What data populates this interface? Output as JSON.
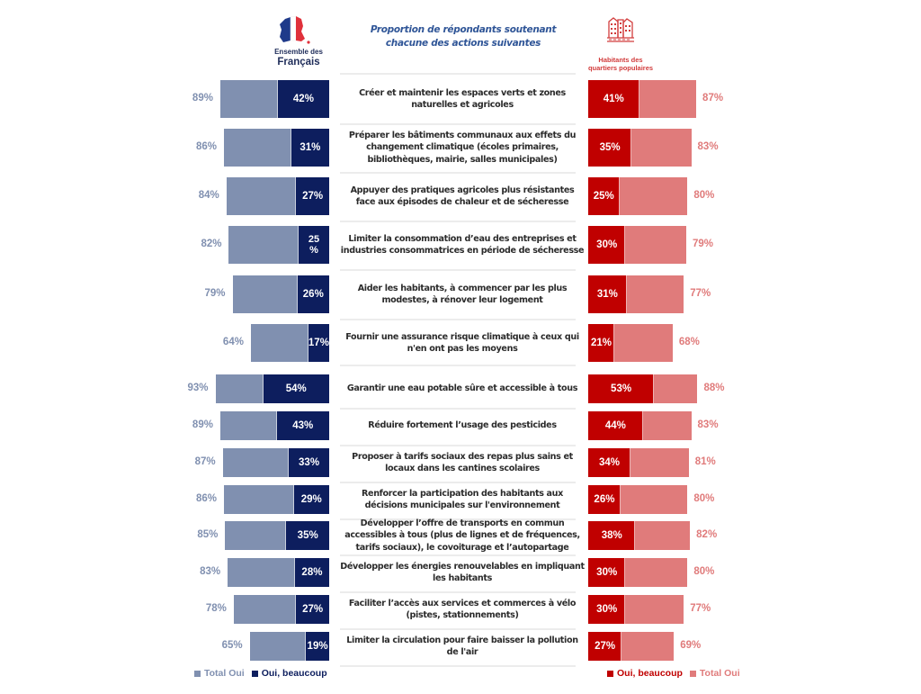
{
  "chart_data": {
    "type": "bar",
    "orientation": "horizontal",
    "title": "Proportion de répondants soutenant chacune des actions suivantes",
    "groups": [
      {
        "name": "Ensemble des Français",
        "label_line1": "Ensemble des",
        "label_line2": "Français",
        "icon": "france-flag-map-icon",
        "side": "left"
      },
      {
        "name": "Habitants des quartiers populaires",
        "label_line1": "Habitants des",
        "label_line2": "quartiers populaires",
        "icon": "buildings-icon",
        "side": "right"
      }
    ],
    "categories": [
      "Créer et maintenir les espaces verts et zones naturelles et agricoles",
      "Préparer les bâtiments communaux aux effets du changement climatique (écoles primaires, bibliothèques, mairie, salles municipales)",
      "Appuyer des pratiques agricoles plus résistantes face aux épisodes de chaleur et de sécheresse",
      "Limiter la consommation d’eau des entreprises et industries consommatrices en période de sécheresse",
      "Aider les habitants, à commencer par les plus modestes, à rénover leur logement",
      "Fournir une assurance risque climatique à ceux qui n'en ont pas les moyens",
      "Garantir une eau potable sûre et accessible à tous",
      "Réduire fortement l’usage des pesticides",
      "Proposer à tarifs sociaux des repas plus sains et locaux dans les cantines scolaires",
      "Renforcer la participation des habitants aux décisions municipales sur l'environnement",
      "Développer l’offre de transports en commun accessibles à tous (plus de lignes et de fréquences, tarifs sociaux), le covoiturage et l’autopartage",
      "Développer les énergies renouvelables en impliquant les habitants",
      "Faciliter l’accès aux services et commerces à vélo (pistes, stationnements)",
      "Limiter la circulation pour faire baisser la pollution de l'air"
    ],
    "series": [
      {
        "name": "Total Oui",
        "group": "Ensemble des Français",
        "color": "#8090b0",
        "values": [
          89,
          86,
          84,
          82,
          79,
          64,
          93,
          89,
          87,
          86,
          85,
          83,
          78,
          65
        ]
      },
      {
        "name": "Oui, beaucoup",
        "group": "Ensemble des Français",
        "color": "#0d1e5e",
        "values": [
          42,
          31,
          27,
          25,
          26,
          17,
          54,
          43,
          33,
          29,
          35,
          28,
          27,
          19
        ]
      },
      {
        "name": "Oui, beaucoup",
        "group": "Habitants des quartiers populaires",
        "color": "#c00000",
        "values": [
          41,
          35,
          25,
          30,
          31,
          21,
          53,
          44,
          34,
          26,
          38,
          30,
          30,
          27
        ]
      },
      {
        "name": "Total Oui",
        "group": "Habitants des quartiers populaires",
        "color": "#e07b7b",
        "values": [
          87,
          83,
          80,
          79,
          77,
          68,
          88,
          83,
          81,
          80,
          82,
          80,
          77,
          69
        ]
      }
    ],
    "value_suffix": "%",
    "special_labels": {
      "left_strong_row4": "25\n%"
    },
    "legend": {
      "left": [
        {
          "label": "Total Oui",
          "color": "#8090b0"
        },
        {
          "label": "Oui, beaucoup",
          "color": "#0d1e5e"
        }
      ],
      "right": [
        {
          "label": "Oui, beaucoup",
          "color": "#c00000"
        },
        {
          "label": "Total Oui",
          "color": "#e07b7b"
        }
      ],
      "placement": "bottom"
    },
    "xlabel": "",
    "ylabel": "",
    "xlim": [
      0,
      100
    ],
    "grid": false
  }
}
